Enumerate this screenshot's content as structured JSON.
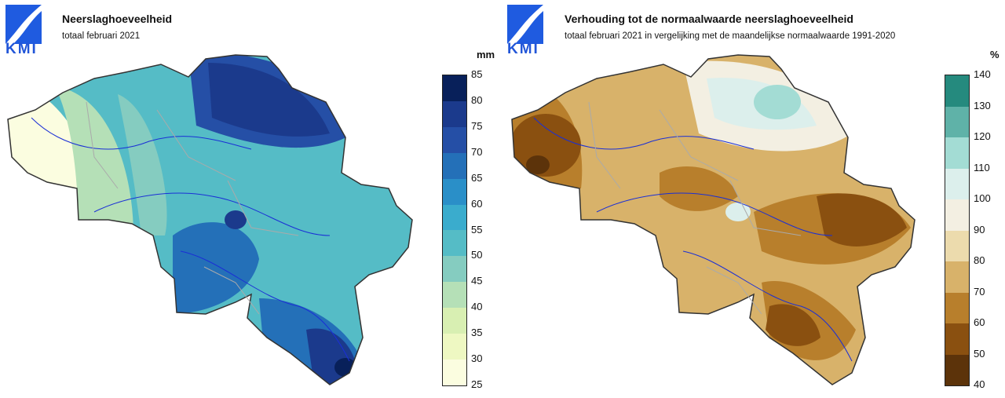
{
  "logo": {
    "text": "KMI",
    "brand_color": "#1f5be0"
  },
  "left": {
    "title": "Neerslaghoeveelheid",
    "subtitle": "totaal februari 2021",
    "unit": "mm",
    "ticks": [
      "85",
      "80",
      "75",
      "70",
      "65",
      "60",
      "55",
      "50",
      "45",
      "40",
      "35",
      "30",
      "25"
    ],
    "colors": [
      "#08205a",
      "#1b3a8c",
      "#254fa6",
      "#2470b8",
      "#2a8fc8",
      "#3aaccd",
      "#55bcc6",
      "#85ccc0",
      "#b5e0b7",
      "#d8efb2",
      "#eef8c2",
      "#fbfde0"
    ]
  },
  "right": {
    "title": "Verhouding tot de normaalwaarde neerslaghoeveelheid",
    "subtitle": "totaal februari 2021 in vergelijking met de maandelijkse normaalwaarde 1991-2020",
    "unit": "%",
    "ticks": [
      "140",
      "130",
      "120",
      "110",
      "100",
      "90",
      "80",
      "70",
      "60",
      "50",
      "40"
    ],
    "colors": [
      "#258a7e",
      "#5fb2a8",
      "#a3dcd4",
      "#dcefec",
      "#f3efe2",
      "#ecdbad",
      "#d8b26a",
      "#b87f2c",
      "#8a5010",
      "#5c330a"
    ]
  }
}
